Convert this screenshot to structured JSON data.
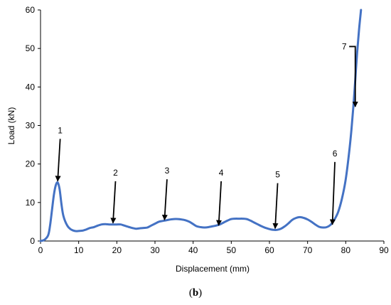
{
  "caption": {
    "open": "(",
    "letter": "b",
    "close": ")"
  },
  "chart_data": {
    "type": "line",
    "title": "",
    "xlabel": "Displacement (mm)",
    "ylabel": "Load (kN)",
    "xlim": [
      0,
      90
    ],
    "ylim": [
      0,
      60
    ],
    "x_ticks": [
      0,
      10,
      20,
      30,
      40,
      50,
      60,
      70,
      80,
      90
    ],
    "y_ticks": [
      0,
      10,
      20,
      30,
      40,
      50,
      60
    ],
    "grid": false,
    "legend": "none",
    "line_color": "#4472c4",
    "series": [
      {
        "x": [
          0,
          1,
          2,
          2.5,
          3,
          3.5,
          4,
          4.5,
          5,
          5.5,
          6,
          7,
          8,
          9,
          10,
          11,
          12,
          13,
          14,
          15,
          16,
          17,
          18,
          19,
          20,
          21,
          22,
          23,
          24,
          25,
          26,
          27,
          28,
          29,
          30,
          31,
          32,
          33,
          34,
          35,
          36,
          37,
          38,
          39,
          40,
          41,
          42,
          43,
          44,
          45,
          46,
          47,
          48,
          49,
          50,
          51,
          52,
          53,
          54,
          55,
          56,
          57,
          58,
          59,
          60,
          61,
          62,
          63,
          64,
          65,
          66,
          67,
          68,
          69,
          70,
          71,
          72,
          73,
          74,
          75,
          76,
          77,
          78,
          79,
          80,
          81,
          81.5,
          82,
          82.5,
          83,
          83.5,
          84
        ],
        "y": [
          0,
          0.3,
          1.5,
          4,
          8,
          12,
          14.5,
          15.2,
          13.5,
          9.5,
          6.5,
          4,
          3,
          2.6,
          2.6,
          2.7,
          3,
          3.4,
          3.6,
          4,
          4.3,
          4.4,
          4.3,
          4.3,
          4.3,
          4.3,
          4,
          3.7,
          3.4,
          3.2,
          3.3,
          3.4,
          3.5,
          4,
          4.5,
          5,
          5.2,
          5.4,
          5.6,
          5.7,
          5.7,
          5.6,
          5.4,
          5,
          4.4,
          3.8,
          3.6,
          3.5,
          3.6,
          3.8,
          4,
          4.3,
          4.8,
          5.3,
          5.7,
          5.8,
          5.8,
          5.8,
          5.7,
          5.3,
          4.8,
          4.3,
          3.8,
          3.4,
          3.1,
          2.9,
          2.9,
          3.2,
          3.8,
          4.6,
          5.5,
          6,
          6.2,
          6,
          5.6,
          5,
          4.3,
          3.7,
          3.5,
          3.6,
          4.2,
          5.5,
          7.5,
          11,
          16,
          24,
          29,
          35,
          42,
          49,
          55,
          60
        ]
      }
    ],
    "annotations": [
      {
        "label": "1",
        "x": 4.5,
        "y": 15.2,
        "text_y": 28
      },
      {
        "label": "2",
        "x": 19,
        "y": 4.3,
        "text_y": 17
      },
      {
        "label": "3",
        "x": 32.5,
        "y": 5.1,
        "text_y": 17.5
      },
      {
        "label": "4",
        "x": 46.7,
        "y": 3.7,
        "text_y": 17
      },
      {
        "label": "5",
        "x": 61.5,
        "y": 2.9,
        "text_y": 16.5
      },
      {
        "label": "6",
        "x": 76.5,
        "y": 3.9,
        "text_y": 22
      },
      {
        "label": "7",
        "x": 82.5,
        "y": 34.5,
        "text_y": 50.5
      }
    ]
  }
}
